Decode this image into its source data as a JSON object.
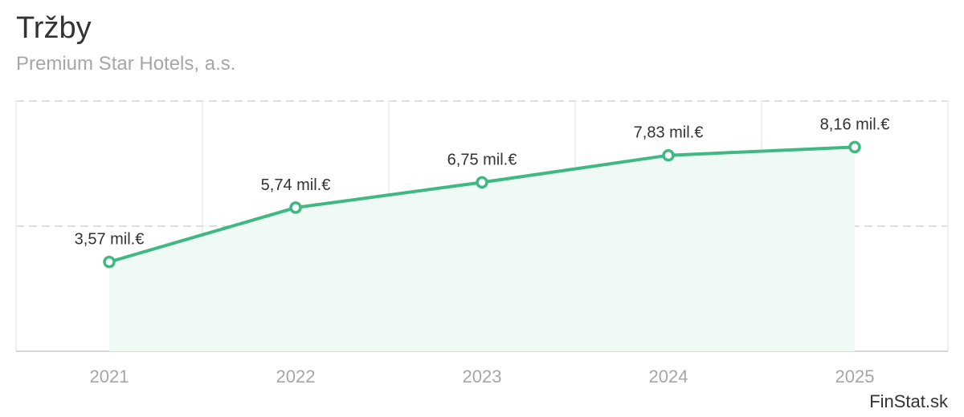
{
  "header": {
    "title": "Tržby",
    "subtitle": "Premium Star Hotels, a.s."
  },
  "credit": "FinStat.sk",
  "colors": {
    "line": "#3fb884",
    "area": "#f0faf5",
    "grid": "#e0e0e0",
    "axis_text": "#a6a6a6",
    "label_text": "#333333"
  },
  "chart_data": {
    "type": "area",
    "categories": [
      "2021",
      "2022",
      "2023",
      "2024",
      "2025"
    ],
    "values": [
      3.57,
      5.74,
      6.75,
      7.83,
      8.16
    ],
    "data_labels": [
      "3,57 mil.€",
      "5,74 mil.€",
      "6,75 mil.€",
      "7,83 mil.€",
      "8,16 mil.€"
    ],
    "ylim": [
      0,
      10
    ],
    "grid": true,
    "legend": "none"
  }
}
